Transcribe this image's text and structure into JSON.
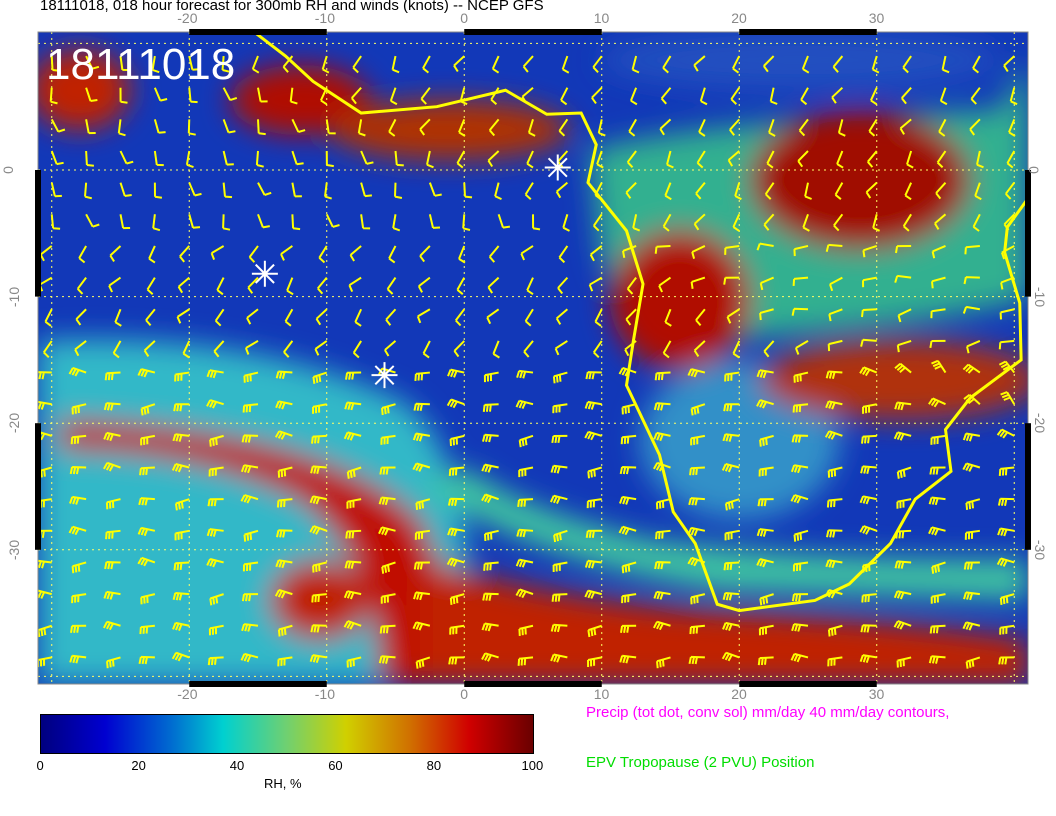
{
  "title": "18111018, 018 hour forecast for 300mb RH and winds (knots) -- NCEP GFS",
  "date_stamp": "18111018",
  "map": {
    "lon_range": [
      -31,
      41
    ],
    "lat_range": [
      -40.6,
      10.9
    ],
    "lon_ticks": [
      "-20",
      "-10",
      "0",
      "10",
      "20",
      "30"
    ],
    "lat_ticks": [
      "0",
      "-10",
      "-20",
      "-30"
    ],
    "coastline_color": "#ffff00",
    "contour_color": "#ff00ff",
    "stars": [
      {
        "lon": 6.8,
        "lat": 0.2
      },
      {
        "lon": -14.5,
        "lat": -8.2
      },
      {
        "lon": -5.8,
        "lat": -16.2
      }
    ]
  },
  "colorbar": {
    "ticks": [
      "0",
      "20",
      "40",
      "60",
      "80",
      "100"
    ],
    "label": "RH, %",
    "colors": [
      "#00007f",
      "#0000d0",
      "#0070d0",
      "#00d0d0",
      "#70d070",
      "#d0d000",
      "#d07000",
      "#d00000",
      "#6a0000"
    ]
  },
  "legend": {
    "precip": "Precip (tot dot, conv sol) mm/day 40 mm/day contours,",
    "epv": "EPV Tropopause (2 PVU) Position"
  }
}
